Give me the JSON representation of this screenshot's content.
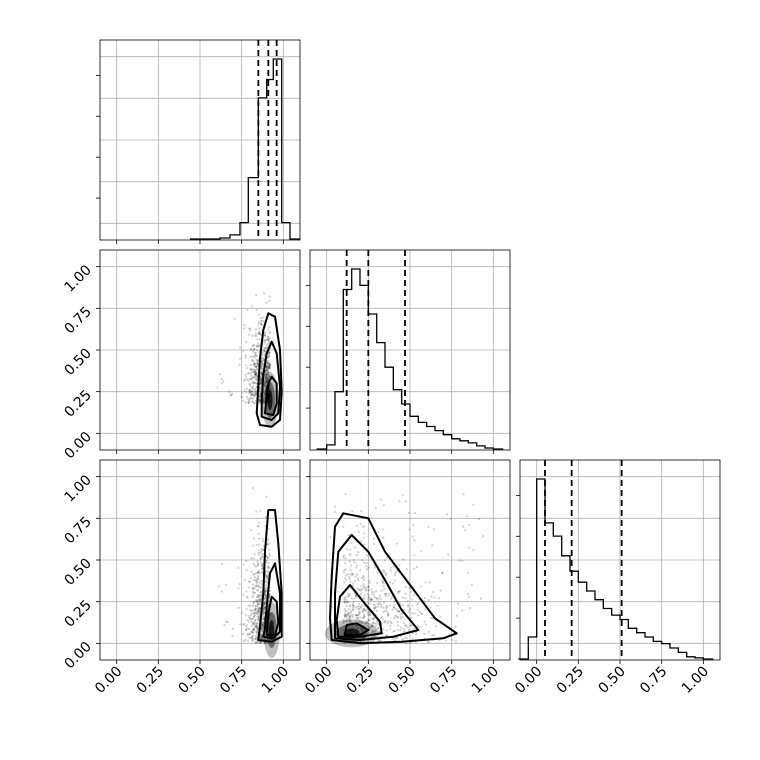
{
  "chart_data": [
    {
      "panel": "hist-param-1",
      "type": "bar",
      "x_range": [
        -0.1,
        1.1
      ],
      "bins": [
        {
          "x0": 0.5,
          "x1": 0.56,
          "h": 0.0
        },
        {
          "x0": 0.56,
          "x1": 0.62,
          "h": 0.0
        },
        {
          "x0": 0.62,
          "x1": 0.68,
          "h": 0.005
        },
        {
          "x0": 0.68,
          "x1": 0.74,
          "h": 0.02
        },
        {
          "x0": 0.74,
          "x1": 0.79,
          "h": 0.08
        },
        {
          "x0": 0.79,
          "x1": 0.85,
          "h": 0.3
        },
        {
          "x0": 0.85,
          "x1": 0.9,
          "h": 0.69
        },
        {
          "x0": 0.9,
          "x1": 0.94,
          "h": 0.78
        },
        {
          "x0": 0.94,
          "x1": 0.99,
          "h": 0.88
        },
        {
          "x0": 0.99,
          "x1": 1.04,
          "h": 0.08
        }
      ],
      "quantiles": [
        0.85,
        0.91,
        0.96
      ],
      "grid": true
    },
    {
      "panel": "hist-param-2",
      "type": "bar",
      "x_range": [
        -0.1,
        1.1
      ],
      "bins": [
        {
          "x0": 0.0,
          "x1": 0.05,
          "h": 0.02
        },
        {
          "x0": 0.05,
          "x1": 0.1,
          "h": 0.28
        },
        {
          "x0": 0.1,
          "x1": 0.15,
          "h": 0.78
        },
        {
          "x0": 0.15,
          "x1": 0.2,
          "h": 0.88
        },
        {
          "x0": 0.2,
          "x1": 0.25,
          "h": 0.8
        },
        {
          "x0": 0.25,
          "x1": 0.3,
          "h": 0.66
        },
        {
          "x0": 0.3,
          "x1": 0.35,
          "h": 0.52
        },
        {
          "x0": 0.35,
          "x1": 0.4,
          "h": 0.4
        },
        {
          "x0": 0.4,
          "x1": 0.45,
          "h": 0.29
        },
        {
          "x0": 0.45,
          "x1": 0.5,
          "h": 0.22
        },
        {
          "x0": 0.5,
          "x1": 0.55,
          "h": 0.16
        },
        {
          "x0": 0.55,
          "x1": 0.6,
          "h": 0.13
        },
        {
          "x0": 0.6,
          "x1": 0.65,
          "h": 0.11
        },
        {
          "x0": 0.65,
          "x1": 0.7,
          "h": 0.09
        },
        {
          "x0": 0.7,
          "x1": 0.75,
          "h": 0.07
        },
        {
          "x0": 0.75,
          "x1": 0.8,
          "h": 0.05
        },
        {
          "x0": 0.8,
          "x1": 0.85,
          "h": 0.04
        },
        {
          "x0": 0.85,
          "x1": 0.9,
          "h": 0.03
        },
        {
          "x0": 0.9,
          "x1": 0.95,
          "h": 0.015
        },
        {
          "x0": 0.95,
          "x1": 1.0,
          "h": 0.005
        }
      ],
      "quantiles": [
        0.12,
        0.25,
        0.47
      ],
      "grid": true
    },
    {
      "panel": "hist-param-3",
      "type": "bar",
      "x_range": [
        -0.1,
        1.1
      ],
      "bins": [
        {
          "x0": -0.05,
          "x1": 0.0,
          "h": 0.1
        },
        {
          "x0": 0.0,
          "x1": 0.05,
          "h": 0.82
        },
        {
          "x0": 0.05,
          "x1": 0.1,
          "h": 0.62
        },
        {
          "x0": 0.1,
          "x1": 0.15,
          "h": 0.56
        },
        {
          "x0": 0.15,
          "x1": 0.2,
          "h": 0.47
        },
        {
          "x0": 0.2,
          "x1": 0.25,
          "h": 0.4
        },
        {
          "x0": 0.25,
          "x1": 0.3,
          "h": 0.35
        },
        {
          "x0": 0.3,
          "x1": 0.35,
          "h": 0.31
        },
        {
          "x0": 0.35,
          "x1": 0.4,
          "h": 0.27
        },
        {
          "x0": 0.4,
          "x1": 0.45,
          "h": 0.23
        },
        {
          "x0": 0.45,
          "x1": 0.5,
          "h": 0.2
        },
        {
          "x0": 0.5,
          "x1": 0.55,
          "h": 0.18
        },
        {
          "x0": 0.55,
          "x1": 0.6,
          "h": 0.14
        },
        {
          "x0": 0.6,
          "x1": 0.65,
          "h": 0.12
        },
        {
          "x0": 0.65,
          "x1": 0.7,
          "h": 0.1
        },
        {
          "x0": 0.7,
          "x1": 0.75,
          "h": 0.08
        },
        {
          "x0": 0.75,
          "x1": 0.8,
          "h": 0.07
        },
        {
          "x0": 0.8,
          "x1": 0.85,
          "h": 0.05
        },
        {
          "x0": 0.85,
          "x1": 0.9,
          "h": 0.03
        },
        {
          "x0": 0.9,
          "x1": 0.95,
          "h": 0.01
        },
        {
          "x0": 0.95,
          "x1": 1.0,
          "h": 0.005
        }
      ],
      "quantiles": [
        0.05,
        0.21,
        0.51
      ],
      "grid": true
    },
    {
      "panel": "scatter-p1-vs-p2",
      "type": "scatter",
      "x_range": [
        -0.1,
        1.1
      ],
      "y_range": [
        -0.1,
        1.1
      ],
      "density_center": [
        0.92,
        0.2
      ],
      "contours": [
        [
          [
            0.86,
            0.05
          ],
          [
            0.93,
            0.04
          ],
          [
            0.98,
            0.08
          ],
          [
            0.99,
            0.25
          ],
          [
            0.98,
            0.5
          ],
          [
            0.95,
            0.7
          ],
          [
            0.91,
            0.72
          ],
          [
            0.88,
            0.62
          ],
          [
            0.86,
            0.45
          ],
          [
            0.85,
            0.28
          ],
          [
            0.84,
            0.12
          ]
        ],
        [
          [
            0.87,
            0.1
          ],
          [
            0.93,
            0.08
          ],
          [
            0.97,
            0.12
          ],
          [
            0.98,
            0.28
          ],
          [
            0.96,
            0.48
          ],
          [
            0.93,
            0.55
          ],
          [
            0.9,
            0.48
          ],
          [
            0.88,
            0.35
          ],
          [
            0.87,
            0.2
          ]
        ],
        [
          [
            0.89,
            0.12
          ],
          [
            0.94,
            0.11
          ],
          [
            0.96,
            0.18
          ],
          [
            0.96,
            0.3
          ],
          [
            0.93,
            0.34
          ],
          [
            0.91,
            0.3
          ],
          [
            0.9,
            0.22
          ]
        ]
      ],
      "grid": true
    },
    {
      "panel": "scatter-p1-vs-p3",
      "type": "scatter",
      "x_range": [
        -0.1,
        1.1
      ],
      "y_range": [
        -0.1,
        1.1
      ],
      "density_center": [
        0.93,
        0.08
      ],
      "contours": [
        [
          [
            0.85,
            0.02
          ],
          [
            0.93,
            0.01
          ],
          [
            0.99,
            0.04
          ],
          [
            0.99,
            0.3
          ],
          [
            0.97,
            0.6
          ],
          [
            0.95,
            0.8
          ],
          [
            0.91,
            0.8
          ],
          [
            0.89,
            0.55
          ],
          [
            0.88,
            0.3
          ],
          [
            0.86,
            0.1
          ]
        ],
        [
          [
            0.88,
            0.04
          ],
          [
            0.94,
            0.03
          ],
          [
            0.98,
            0.07
          ],
          [
            0.98,
            0.3
          ],
          [
            0.95,
            0.48
          ],
          [
            0.92,
            0.42
          ],
          [
            0.9,
            0.22
          ],
          [
            0.89,
            0.09
          ]
        ],
        [
          [
            0.9,
            0.05
          ],
          [
            0.95,
            0.05
          ],
          [
            0.97,
            0.12
          ],
          [
            0.96,
            0.25
          ],
          [
            0.93,
            0.28
          ],
          [
            0.91,
            0.18
          ]
        ]
      ],
      "grid": true
    },
    {
      "panel": "scatter-p2-vs-p3",
      "type": "scatter",
      "x_range": [
        -0.1,
        1.1
      ],
      "y_range": [
        -0.1,
        1.1
      ],
      "density_center": [
        0.15,
        0.06
      ],
      "contours": [
        [
          [
            0.03,
            0.02
          ],
          [
            0.2,
            0.0
          ],
          [
            0.45,
            0.01
          ],
          [
            0.7,
            0.03
          ],
          [
            0.78,
            0.06
          ],
          [
            0.65,
            0.15
          ],
          [
            0.5,
            0.35
          ],
          [
            0.35,
            0.55
          ],
          [
            0.25,
            0.75
          ],
          [
            0.1,
            0.78
          ],
          [
            0.05,
            0.7
          ],
          [
            0.03,
            0.4
          ],
          [
            0.02,
            0.15
          ]
        ],
        [
          [
            0.05,
            0.03
          ],
          [
            0.2,
            0.02
          ],
          [
            0.4,
            0.04
          ],
          [
            0.55,
            0.08
          ],
          [
            0.45,
            0.2
          ],
          [
            0.35,
            0.38
          ],
          [
            0.25,
            0.55
          ],
          [
            0.15,
            0.65
          ],
          [
            0.07,
            0.55
          ],
          [
            0.05,
            0.3
          ]
        ],
        [
          [
            0.07,
            0.04
          ],
          [
            0.2,
            0.04
          ],
          [
            0.33,
            0.06
          ],
          [
            0.32,
            0.13
          ],
          [
            0.22,
            0.25
          ],
          [
            0.14,
            0.35
          ],
          [
            0.08,
            0.28
          ],
          [
            0.06,
            0.14
          ]
        ],
        [
          [
            0.11,
            0.05
          ],
          [
            0.2,
            0.05
          ],
          [
            0.25,
            0.08
          ],
          [
            0.18,
            0.12
          ],
          [
            0.12,
            0.11
          ]
        ]
      ],
      "grid": true
    }
  ],
  "axes": {
    "y_ticks": [
      "0.00",
      "0.25",
      "0.50",
      "0.75",
      "1.00"
    ],
    "x_ticks": [
      "0.00",
      "0.25",
      "0.50",
      "0.75",
      "1.00"
    ]
  }
}
